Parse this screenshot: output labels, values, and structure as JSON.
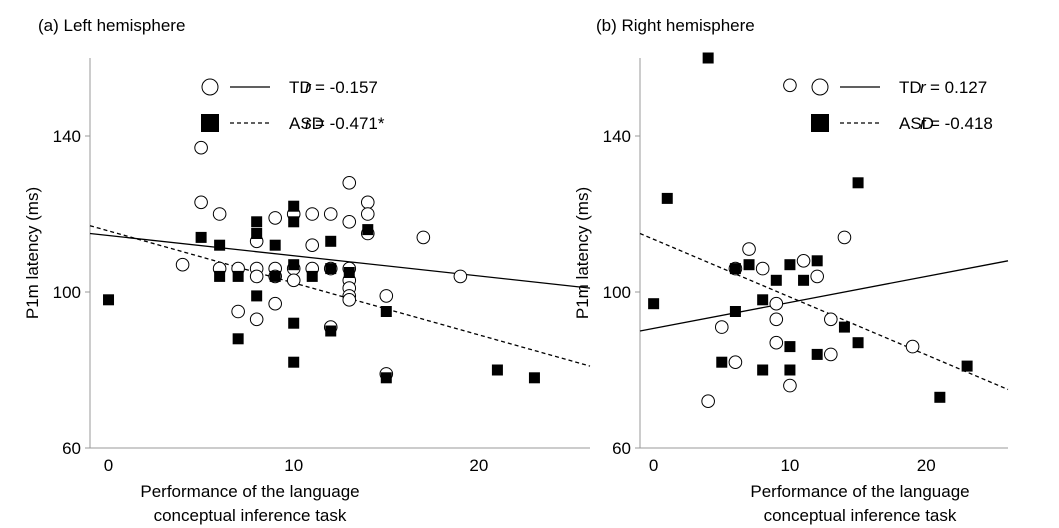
{
  "chart_data": [
    {
      "type": "scatter",
      "panel_label": "(a) Left hemisphere",
      "xlabel": [
        "Performance of the language",
        "conceptual inference task"
      ],
      "ylabel": "P1m latency (ms)",
      "xlim": [
        -1,
        26
      ],
      "ylim": [
        60,
        160
      ],
      "xticks": [
        "0",
        "10",
        "20"
      ],
      "xtick_values": [
        0,
        10,
        20
      ],
      "yticks": [
        "60",
        "100",
        "140"
      ],
      "ytick_values": [
        60,
        100,
        140
      ],
      "legend": [
        {
          "marker": "open-circle",
          "line": "solid",
          "name": "TD",
          "r_label": "r",
          "r_value": "= -0.157"
        },
        {
          "marker": "filled-square",
          "line": "dashed",
          "name": "ASD",
          "r_label": "r",
          "r_value": "= -0.471*"
        }
      ],
      "series": [
        {
          "name": "TD",
          "marker": "open-circle",
          "points": [
            [
              4,
              107
            ],
            [
              5,
              137
            ],
            [
              5,
              123
            ],
            [
              6,
              120
            ],
            [
              6,
              106
            ],
            [
              7,
              106
            ],
            [
              7,
              95
            ],
            [
              8,
              113
            ],
            [
              8,
              106
            ],
            [
              8,
              104
            ],
            [
              8,
              93
            ],
            [
              9,
              119
            ],
            [
              9,
              106
            ],
            [
              9,
              104
            ],
            [
              9,
              97
            ],
            [
              10,
              120
            ],
            [
              10,
              106
            ],
            [
              10,
              103
            ],
            [
              11,
              120
            ],
            [
              11,
              112
            ],
            [
              11,
              106
            ],
            [
              12,
              120
            ],
            [
              12,
              106
            ],
            [
              12,
              91
            ],
            [
              13,
              128
            ],
            [
              13,
              118
            ],
            [
              13,
              106
            ],
            [
              13,
              103
            ],
            [
              13,
              101
            ],
            [
              13,
              99
            ],
            [
              13,
              98
            ],
            [
              14,
              123
            ],
            [
              14,
              120
            ],
            [
              14,
              115
            ],
            [
              15,
              99
            ],
            [
              15,
              79
            ],
            [
              17,
              114
            ],
            [
              19,
              104
            ]
          ],
          "fit": {
            "x": [
              -1,
              26
            ],
            "y": [
              115,
              101
            ]
          }
        },
        {
          "name": "ASD",
          "marker": "filled-square",
          "points": [
            [
              0,
              98
            ],
            [
              5,
              114
            ],
            [
              6,
              112
            ],
            [
              6,
              104
            ],
            [
              7,
              104
            ],
            [
              7,
              88
            ],
            [
              8,
              118
            ],
            [
              8,
              115
            ],
            [
              8,
              99
            ],
            [
              9,
              112
            ],
            [
              9,
              104
            ],
            [
              10,
              122
            ],
            [
              10,
              118
            ],
            [
              10,
              107
            ],
            [
              10,
              92
            ],
            [
              10,
              82
            ],
            [
              11,
              104
            ],
            [
              12,
              113
            ],
            [
              12,
              106
            ],
            [
              12,
              90
            ],
            [
              13,
              105
            ],
            [
              14,
              116
            ],
            [
              15,
              95
            ],
            [
              15,
              78
            ],
            [
              21,
              80
            ],
            [
              23,
              78
            ]
          ],
          "fit": {
            "x": [
              -1,
              26
            ],
            "y": [
              117,
              81
            ]
          }
        }
      ]
    },
    {
      "type": "scatter",
      "panel_label": "(b) Right hemisphere",
      "xlabel": [
        "Performance of the language",
        "conceptual inference task"
      ],
      "ylabel": "P1m latency (ms)",
      "xlim": [
        -1,
        26
      ],
      "ylim": [
        60,
        160
      ],
      "xticks": [
        "0",
        "10",
        "20"
      ],
      "xtick_values": [
        0,
        10,
        20
      ],
      "yticks": [
        "60",
        "100",
        "140"
      ],
      "ytick_values": [
        60,
        100,
        140
      ],
      "legend": [
        {
          "marker": "open-circle",
          "line": "solid",
          "name": "TD",
          "r_label": "r",
          "r_value": "= 0.127"
        },
        {
          "marker": "filled-square",
          "line": "dashed",
          "name": "ASD",
          "r_label": "r",
          "r_value": "= -0.418"
        }
      ],
      "series": [
        {
          "name": "TD",
          "marker": "open-circle",
          "points": [
            [
              4,
              72
            ],
            [
              5,
              91
            ],
            [
              6,
              82
            ],
            [
              6,
              106
            ],
            [
              7,
              111
            ],
            [
              8,
              106
            ],
            [
              9,
              97
            ],
            [
              9,
              93
            ],
            [
              9,
              87
            ],
            [
              10,
              76
            ],
            [
              10,
              153
            ],
            [
              11,
              108
            ],
            [
              12,
              104
            ],
            [
              13,
              93
            ],
            [
              13,
              84
            ],
            [
              14,
              114
            ],
            [
              19,
              86
            ]
          ],
          "fit": {
            "x": [
              -1,
              26
            ],
            "y": [
              90,
              108
            ]
          }
        },
        {
          "name": "ASD",
          "marker": "filled-square",
          "points": [
            [
              0,
              97
            ],
            [
              1,
              124
            ],
            [
              4,
              160
            ],
            [
              5,
              82
            ],
            [
              6,
              106
            ],
            [
              6,
              95
            ],
            [
              7,
              107
            ],
            [
              8,
              98
            ],
            [
              8,
              80
            ],
            [
              9,
              103
            ],
            [
              10,
              107
            ],
            [
              10,
              86
            ],
            [
              10,
              80
            ],
            [
              11,
              103
            ],
            [
              12,
              108
            ],
            [
              12,
              84
            ],
            [
              14,
              91
            ],
            [
              15,
              128
            ],
            [
              15,
              87
            ],
            [
              21,
              73
            ],
            [
              23,
              81
            ]
          ],
          "fit": {
            "x": [
              -1,
              26
            ],
            "y": [
              115,
              75
            ]
          }
        }
      ]
    }
  ]
}
